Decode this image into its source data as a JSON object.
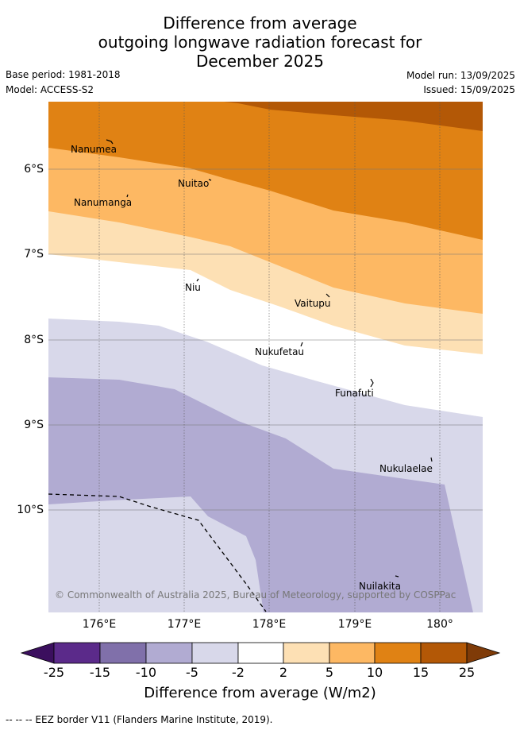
{
  "title": {
    "line1": "Difference from average",
    "line2": "outgoing longwave radiation forecast for",
    "line3": "December 2025"
  },
  "meta": {
    "base_period": "Base period: 1981-2018",
    "model": "Model: ACCESS-S2",
    "model_run": "Model run: 13/09/2025",
    "issued": "Issued: 15/09/2025"
  },
  "map": {
    "lon_range": [
      175.4,
      180.5
    ],
    "lat_range": [
      -11.2,
      -5.2
    ],
    "y_ticks": [
      "6°S",
      "7°S",
      "8°S",
      "9°S",
      "10°S"
    ],
    "x_ticks": [
      "176°E",
      "177°E",
      "178°E",
      "179°E",
      "180°"
    ],
    "places": [
      "Nanumea",
      "Nuitao",
      "Nanumanga",
      "Niu",
      "Vaitupu",
      "Nukufetau",
      "Funafuti",
      "Nukulaelae",
      "Nuilakita"
    ],
    "copyright": "© Commonwealth of Australia 2025, Bureau of Meteorology, supported by COSPPac"
  },
  "colorbar": {
    "title": "Difference from average (W/m2)",
    "ticks": [
      "-25",
      "-15",
      "-10",
      "-5",
      "-2",
      "2",
      "5",
      "10",
      "15",
      "25"
    ],
    "colors": {
      "below": "#3b0f5e",
      "c_m25_m15": "#5b2a8a",
      "c_m15_m10": "#8070aa",
      "c_m10_m5": "#b1abd2",
      "c_m5_m2": "#d8d8ea",
      "c_m2_2": "#ffffff",
      "c_2_5": "#fde0b4",
      "c_5_10": "#fdb863",
      "c_10_15": "#e08214",
      "c_15_25": "#b35806",
      "above": "#7f3b08"
    }
  },
  "footnote": "--  --  -- EEZ border V11 (Flanders Marine Institute, 2019)."
}
